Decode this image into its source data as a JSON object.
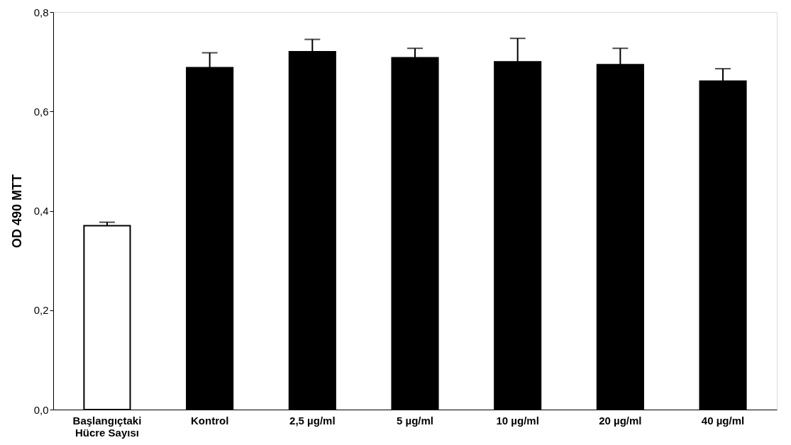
{
  "chart_data": {
    "type": "bar",
    "ylabel": "OD 490 MTT",
    "categories": [
      "Başlangıçtaki\nHücre Sayısı",
      "Kontrol",
      "2,5 µg/ml",
      "5 µg/ml",
      "10 µg/ml",
      "20 µg/ml",
      "40 µg/ml"
    ],
    "values": [
      0.37,
      0.688,
      0.72,
      0.708,
      0.7,
      0.694,
      0.661
    ],
    "errors": [
      0.007,
      0.03,
      0.025,
      0.019,
      0.047,
      0.033,
      0.025
    ],
    "colors": [
      "#ffffff",
      "#000000",
      "#000000",
      "#000000",
      "#000000",
      "#000000",
      "#000000"
    ],
    "ylim": [
      0,
      0.8
    ],
    "yticks": [
      {
        "value": 0,
        "label": "0,0"
      },
      {
        "value": 0.2,
        "label": "0,2"
      },
      {
        "value": 0.4,
        "label": "0,4"
      },
      {
        "value": 0.6,
        "label": "0,6"
      },
      {
        "value": 0.8,
        "label": "0,8"
      }
    ],
    "grid": false
  }
}
